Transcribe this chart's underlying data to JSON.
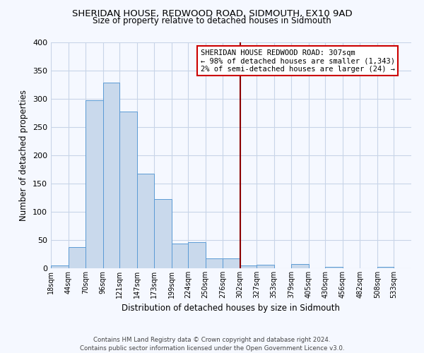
{
  "title": "SHERIDAN HOUSE, REDWOOD ROAD, SIDMOUTH, EX10 9AD",
  "subtitle": "Size of property relative to detached houses in Sidmouth",
  "xlabel": "Distribution of detached houses by size in Sidmouth",
  "ylabel": "Number of detached properties",
  "bin_labels": [
    "18sqm",
    "44sqm",
    "70sqm",
    "96sqm",
    "121sqm",
    "147sqm",
    "173sqm",
    "199sqm",
    "224sqm",
    "250sqm",
    "276sqm",
    "302sqm",
    "327sqm",
    "353sqm",
    "379sqm",
    "405sqm",
    "430sqm",
    "456sqm",
    "482sqm",
    "508sqm",
    "533sqm"
  ],
  "bar_values": [
    5,
    37,
    297,
    329,
    278,
    168,
    122,
    44,
    46,
    17,
    18,
    5,
    6,
    0,
    7,
    0,
    2,
    0,
    0,
    2,
    0
  ],
  "bar_color": "#c9d9ec",
  "bar_edge_color": "#5b9bd5",
  "bin_edges_values": [
    18,
    44,
    70,
    96,
    121,
    147,
    173,
    199,
    224,
    250,
    276,
    302,
    327,
    353,
    379,
    405,
    430,
    456,
    482,
    508,
    533
  ],
  "annotation_title": "SHERIDAN HOUSE REDWOOD ROAD: 307sqm",
  "annotation_line1": "← 98% of detached houses are smaller (1,343)",
  "annotation_line2": "2% of semi-detached houses are larger (24) →",
  "vline_color": "#8b0000",
  "annotation_box_edge_color": "#cc0000",
  "ylim": [
    0,
    400
  ],
  "yticks": [
    0,
    50,
    100,
    150,
    200,
    250,
    300,
    350,
    400
  ],
  "footer_line1": "Contains HM Land Registry data © Crown copyright and database right 2024.",
  "footer_line2": "Contains public sector information licensed under the Open Government Licence v3.0.",
  "bg_color": "#f5f8ff",
  "grid_color": "#c8d4e8"
}
